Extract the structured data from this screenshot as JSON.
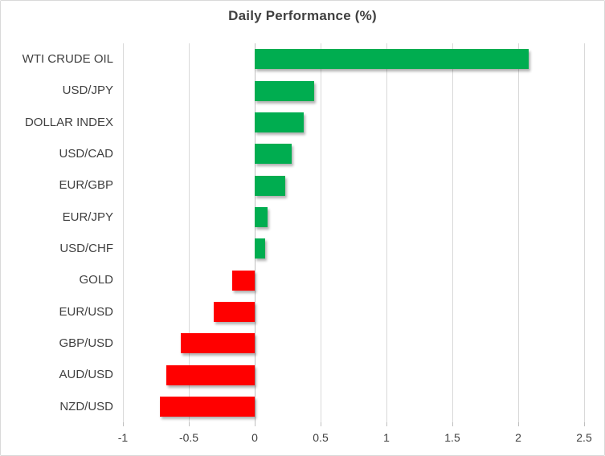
{
  "chart_data": {
    "type": "bar",
    "orientation": "horizontal",
    "title": "Daily Performance (%)",
    "categories": [
      "WTI CRUDE OIL",
      "USD/JPY",
      "DOLLAR INDEX",
      "USD/CAD",
      "EUR/GBP",
      "EUR/JPY",
      "USD/CHF",
      "GOLD",
      "EUR/USD",
      "GBP/USD",
      "AUD/USD",
      "NZD/USD"
    ],
    "values": [
      2.08,
      0.45,
      0.37,
      0.28,
      0.23,
      0.1,
      0.08,
      -0.17,
      -0.31,
      -0.56,
      -0.67,
      -0.72
    ],
    "xlabel": "",
    "ylabel": "",
    "xlim": [
      -1,
      2.5
    ],
    "xticks": [
      -1,
      -0.5,
      0,
      0.5,
      1,
      1.5,
      2,
      2.5
    ],
    "xtick_labels": [
      "-1",
      "-0.5",
      "0",
      "0.5",
      "1",
      "1.5",
      "2",
      "2.5"
    ],
    "grid": true,
    "legend": false,
    "colors": {
      "positive": "#00ad50",
      "negative": "#ff0000",
      "gridline": "#d9d9d9",
      "zero_line": "#bfbfbf",
      "text": "#404040"
    }
  }
}
